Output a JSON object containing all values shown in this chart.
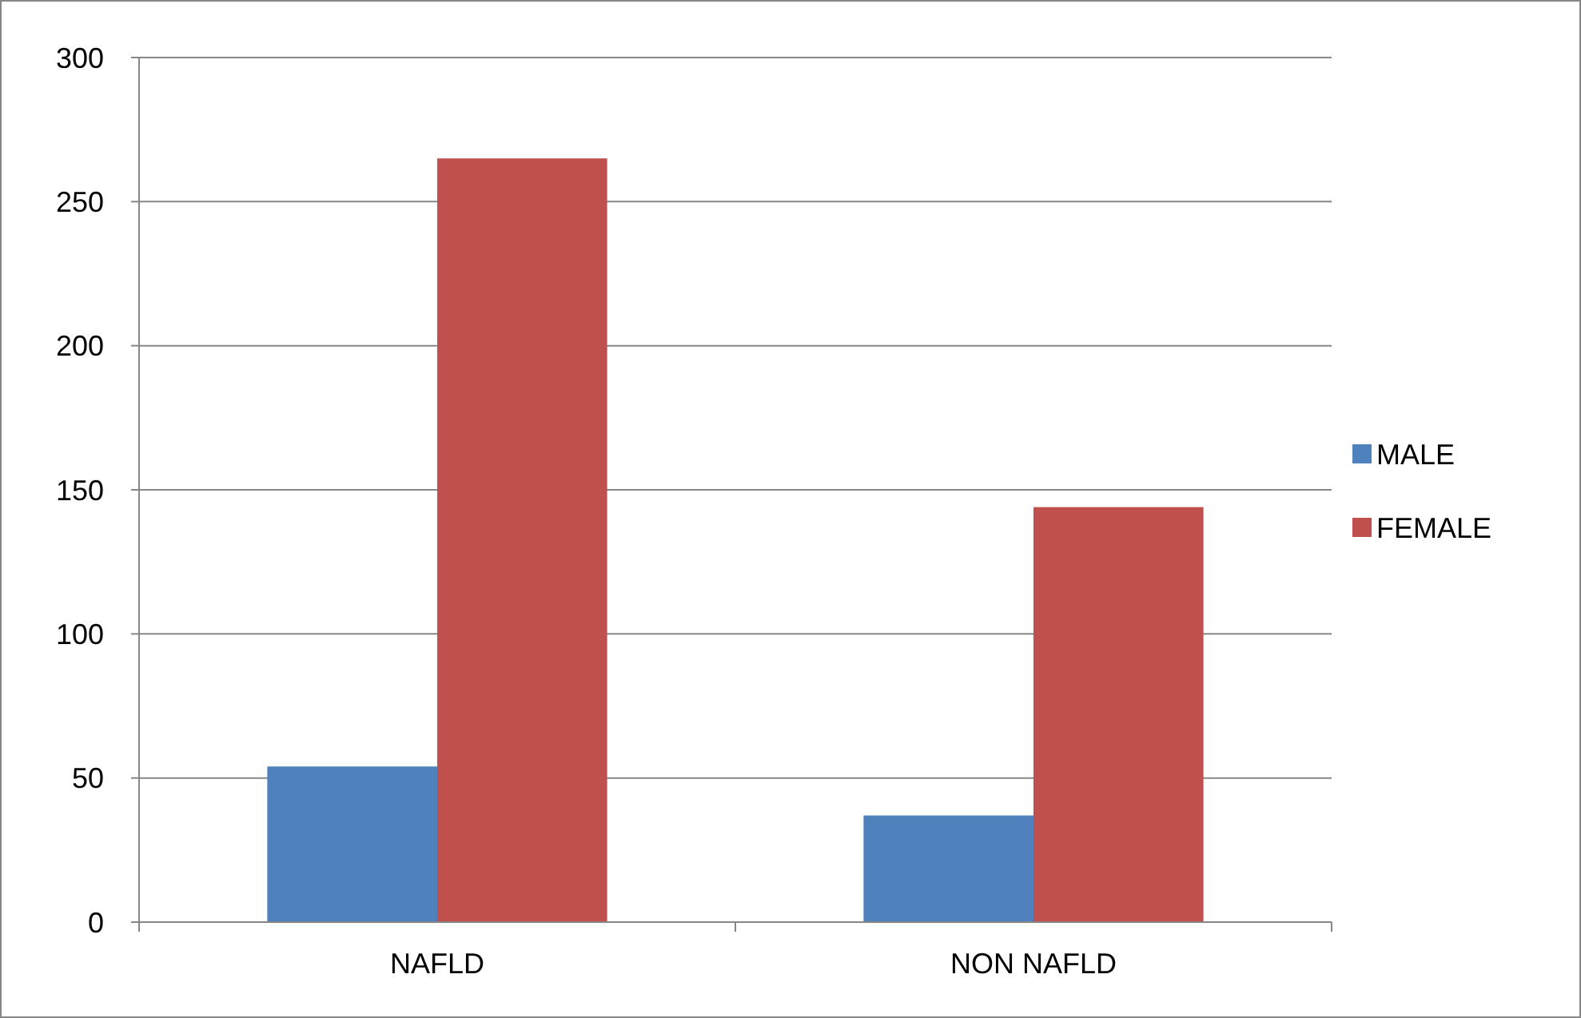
{
  "chart_data": {
    "type": "bar",
    "categories": [
      "NAFLD",
      "NON NAFLD"
    ],
    "series": [
      {
        "name": "MALE",
        "color": "#4f81bd",
        "values": [
          54,
          37
        ]
      },
      {
        "name": "FEMALE",
        "color": "#c0504d",
        "values": [
          265,
          144
        ]
      }
    ],
    "ylim": [
      0,
      300
    ],
    "yticks": [
      0,
      50,
      100,
      150,
      200,
      250,
      300
    ],
    "grid": "y",
    "legend": "right"
  }
}
